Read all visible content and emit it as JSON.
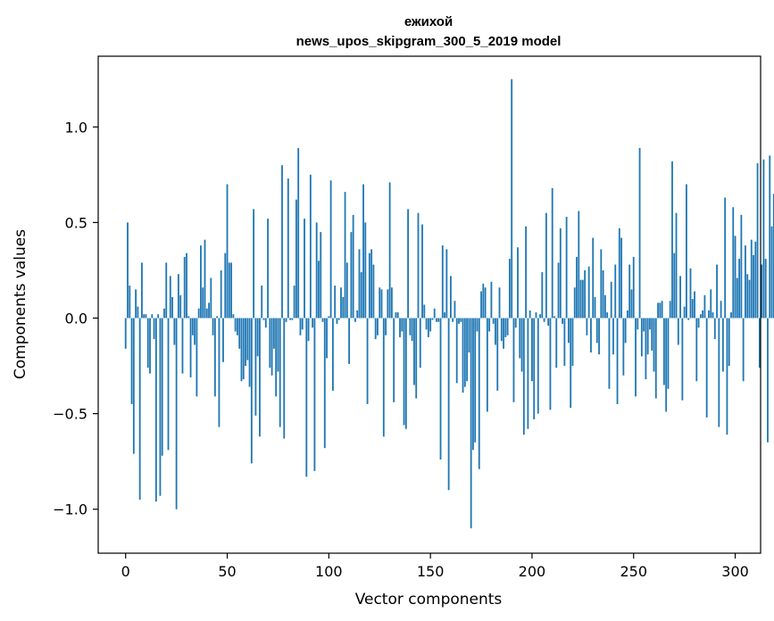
{
  "chart_data": {
    "type": "bar",
    "title": "ежихой",
    "subtitle": "news_upos_skipgram_300_5_2019 model",
    "xlabel": "Vector components",
    "ylabel": "Components values",
    "xlim": [
      -13.5,
      312.5
    ],
    "ylim": [
      -1.23,
      1.37
    ],
    "xticks": [
      0,
      50,
      100,
      150,
      200,
      250,
      300
    ],
    "xtick_labels": [
      "0",
      "50",
      "100",
      "150",
      "200",
      "250",
      "300"
    ],
    "yticks": [
      -1.0,
      -0.5,
      0.0,
      0.5,
      1.0
    ],
    "ytick_labels": [
      "−1.0",
      "−0.5",
      "0.0",
      "0.5",
      "1.0"
    ],
    "color": "#1f77b4",
    "x_start": 0,
    "values": [
      -0.16,
      0.5,
      0.17,
      -0.45,
      -0.71,
      0.15,
      0.06,
      -0.95,
      0.29,
      0.02,
      0.02,
      -0.26,
      -0.29,
      0.02,
      -0.11,
      -0.96,
      0.02,
      -0.93,
      -0.72,
      0.05,
      0.29,
      -0.69,
      0.22,
      0.11,
      -0.14,
      -1.0,
      0.23,
      0.12,
      -0.29,
      0.32,
      0.34,
      0.01,
      -0.31,
      -0.09,
      -0.14,
      -0.41,
      0.05,
      0.38,
      0.16,
      0.41,
      0.05,
      0.08,
      0.21,
      -0.09,
      -0.41,
      0.01,
      -0.57,
      0.25,
      -0.23,
      0.34,
      0.7,
      0.29,
      0.29,
      0.02,
      -0.07,
      -0.09,
      -0.16,
      -0.33,
      -0.32,
      -0.25,
      -0.22,
      -0.36,
      -0.76,
      0.57,
      -0.51,
      -0.2,
      -0.62,
      0.17,
      -0.01,
      -0.05,
      0.52,
      -0.26,
      -0.3,
      -0.16,
      -0.41,
      -0.28,
      -0.57,
      0.8,
      -0.63,
      -0.02,
      0.73,
      -0.01,
      -0.01,
      0.17,
      0.62,
      0.89,
      -0.09,
      -0.06,
      0.52,
      -0.83,
      -0.12,
      0.75,
      -0.05,
      -0.8,
      0.5,
      0.3,
      0.45,
      -0.02,
      -0.68,
      -0.21,
      0.01,
      0.72,
      -0.38,
      0.17,
      -0.03,
      -0.01,
      0.16,
      0.11,
      0.66,
      0.29,
      -0.24,
      0.45,
      0.54,
      -0.02,
      0.04,
      0.36,
      0.24,
      0.7,
      0.5,
      -0.45,
      0.34,
      0.36,
      0.28,
      -0.11,
      -0.09,
      0.16,
      0.15,
      -0.62,
      -0.09,
      0.15,
      0.71,
      0.16,
      -0.44,
      0.03,
      0.03,
      -0.1,
      -0.07,
      -0.56,
      -0.58,
      0.57,
      -0.09,
      -0.12,
      -0.35,
      -0.42,
      0.55,
      -0.26,
      0.49,
      0.07,
      -0.06,
      -0.1,
      -0.07,
      -0.01,
      0.05,
      -0.02,
      -0.02,
      -0.74,
      0.38,
      0.03,
      0.36,
      -0.9,
      0.22,
      -0.02,
      0.09,
      -0.34,
      -0.03,
      -0.02,
      -0.39,
      -0.36,
      -0.33,
      -0.18,
      -1.1,
      -0.69,
      -0.65,
      -0.07,
      -0.79,
      0.14,
      0.18,
      0.16,
      -0.49,
      -0.07,
      0.19,
      -0.03,
      -0.14,
      -0.38,
      0.16,
      -0.12,
      -0.16,
      -0.1,
      -0.09,
      0.31,
      1.25,
      -0.44,
      -0.05,
      0.37,
      -0.21,
      -0.28,
      -0.61,
      0.48,
      -0.58,
      0.04,
      -0.33,
      -0.53,
      0.03,
      -0.5,
      0.02,
      0.24,
      -0.02,
      0.55,
      -0.04,
      -0.48,
      0.68,
      0.01,
      -0.26,
      0.29,
      0.47,
      -0.03,
      -0.25,
      0.53,
      -0.13,
      -0.47,
      -0.25,
      0.16,
      0.32,
      0.56,
      0.2,
      0.2,
      0.25,
      -0.09,
      0.27,
      -0.18,
      0.42,
      0.11,
      -0.13,
      -0.19,
      0.36,
      0.25,
      0.12,
      0.03,
      -0.37,
      0.19,
      -0.19,
      0.28,
      -0.45,
      0.47,
      0.42,
      -0.3,
      -0.13,
      0.04,
      0.28,
      0.15,
      0.32,
      -0.41,
      -0.06,
      0.89,
      -0.2,
      -0.07,
      -0.32,
      -0.19,
      -0.06,
      -0.17,
      -0.28,
      -0.42,
      0.08,
      0.08,
      0.09,
      -0.35,
      -0.49,
      -0.37,
      0.09,
      0.82,
      0.34,
      0.55,
      -0.14,
      0.22,
      -0.43,
      0.06,
      0.7,
      -0.01,
      0.26,
      0.1,
      0.14,
      -0.33,
      -0.05,
      0.02,
      0.04,
      0.12,
      -0.52,
      0.04,
      0.15,
      0.03,
      -0.11,
      0.28,
      -0.57,
      0.09,
      -0.28,
      0.63,
      -0.61,
      -0.25,
      0.03,
      0.58,
      0.43,
      0.21,
      0.31,
      0.54,
      -0.33,
      0.38,
      0.23,
      0.2,
      0.41,
      0.33,
      0.4,
      0.81,
      -0.26,
      0.28,
      0.83,
      0.31,
      -0.65,
      0.85,
      0.48,
      0.65
    ]
  }
}
